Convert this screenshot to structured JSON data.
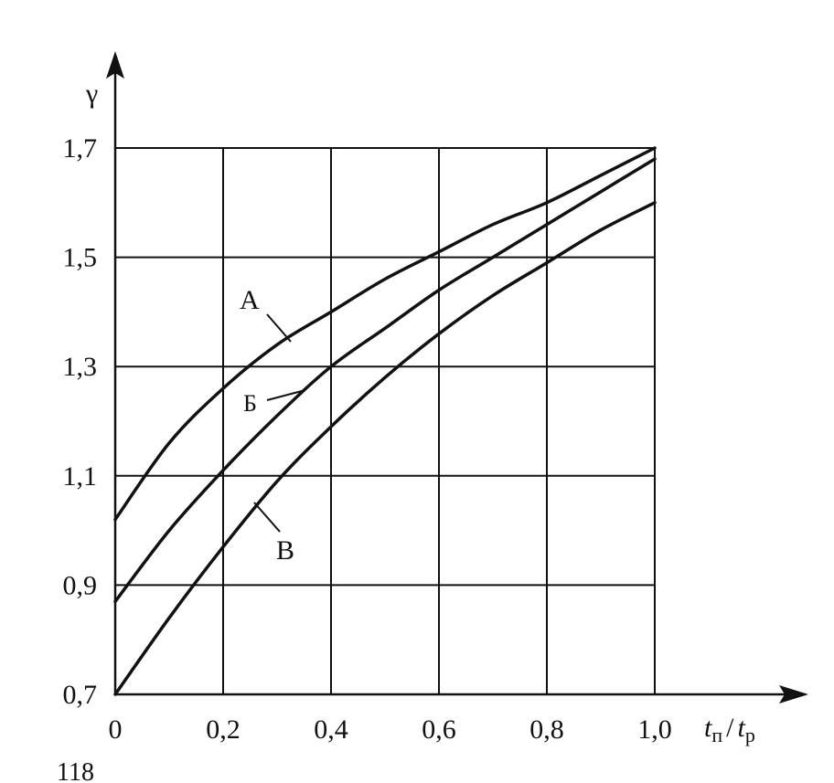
{
  "chart_data": {
    "type": "line",
    "ylabel": "γ",
    "xlabel": {
      "t1": "t",
      "sub1": "п",
      "slash": "/",
      "t2": "t",
      "sub2": "р"
    },
    "xlim": [
      0,
      1.0
    ],
    "ylim": [
      0.7,
      1.7
    ],
    "grid": true,
    "x_ticks": [
      {
        "value": 0,
        "label": "0"
      },
      {
        "value": 0.2,
        "label": "0,2"
      },
      {
        "value": 0.4,
        "label": "0,4"
      },
      {
        "value": 0.6,
        "label": "0,6"
      },
      {
        "value": 0.8,
        "label": "0,8"
      },
      {
        "value": 1.0,
        "label": "1,0"
      }
    ],
    "y_ticks": [
      {
        "value": 0.7,
        "label": "0,7"
      },
      {
        "value": 0.9,
        "label": "0,9"
      },
      {
        "value": 1.1,
        "label": "1,1"
      },
      {
        "value": 1.3,
        "label": "1,3"
      },
      {
        "value": 1.5,
        "label": "1,5"
      },
      {
        "value": 1.7,
        "label": "1,7"
      }
    ],
    "series": [
      {
        "name": "А",
        "x": [
          0,
          0.1,
          0.2,
          0.3,
          0.4,
          0.5,
          0.6,
          0.7,
          0.8,
          0.9,
          1.0
        ],
        "y": [
          1.02,
          1.16,
          1.26,
          1.34,
          1.4,
          1.46,
          1.51,
          1.56,
          1.6,
          1.65,
          1.7
        ]
      },
      {
        "name": "Б",
        "x": [
          0,
          0.1,
          0.2,
          0.3,
          0.4,
          0.5,
          0.6,
          0.7,
          0.8,
          0.9,
          1.0
        ],
        "y": [
          0.87,
          1.0,
          1.11,
          1.21,
          1.3,
          1.37,
          1.44,
          1.5,
          1.56,
          1.62,
          1.68
        ]
      },
      {
        "name": "В",
        "x": [
          0,
          0.1,
          0.2,
          0.3,
          0.4,
          0.5,
          0.6,
          0.7,
          0.8,
          0.9,
          1.0
        ],
        "y": [
          0.7,
          0.84,
          0.97,
          1.09,
          1.19,
          1.28,
          1.36,
          1.43,
          1.49,
          1.55,
          1.6
        ]
      }
    ]
  },
  "page_fragment": "118"
}
